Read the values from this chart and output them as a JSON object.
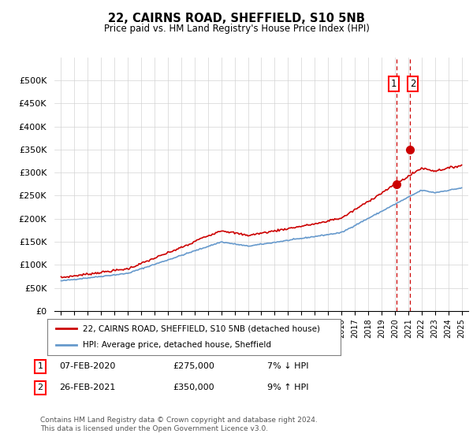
{
  "title": "22, CAIRNS ROAD, SHEFFIELD, S10 5NB",
  "subtitle": "Price paid vs. HM Land Registry's House Price Index (HPI)",
  "hpi_color": "#6699cc",
  "price_color": "#cc0000",
  "vline_color": "#cc0000",
  "marker_color": "#cc0000",
  "ylim": [
    0,
    550000
  ],
  "yticks": [
    0,
    50000,
    100000,
    150000,
    200000,
    250000,
    300000,
    350000,
    400000,
    450000,
    500000
  ],
  "ytick_labels": [
    "£0",
    "£50K",
    "£100K",
    "£150K",
    "£200K",
    "£250K",
    "£300K",
    "£350K",
    "£400K",
    "£450K",
    "£500K"
  ],
  "legend_label_price": "22, CAIRNS ROAD, SHEFFIELD, S10 5NB (detached house)",
  "legend_label_hpi": "HPI: Average price, detached house, Sheffield",
  "sale1_date": "07-FEB-2020",
  "sale1_price": "£275,000",
  "sale1_change": "7% ↓ HPI",
  "sale2_date": "26-FEB-2021",
  "sale2_price": "£350,000",
  "sale2_change": "9% ↑ HPI",
  "footer": "Contains HM Land Registry data © Crown copyright and database right 2024.\nThis data is licensed under the Open Government Licence v3.0.",
  "sale1_year": 2020.1,
  "sale2_year": 2021.15,
  "sale1_value": 275000,
  "sale2_value": 350000,
  "xlim_left": 1994.5,
  "xlim_right": 2025.5
}
